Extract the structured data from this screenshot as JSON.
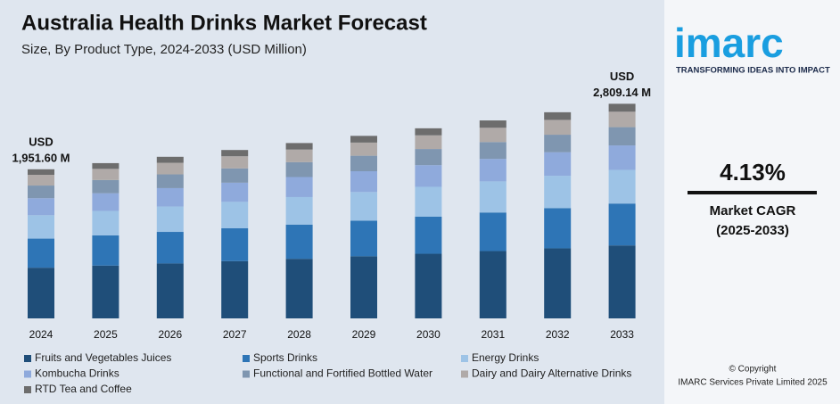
{
  "chart_data": {
    "type": "bar",
    "stacked": true,
    "title": "Australia Health Drinks Market Forecast",
    "subtitle": "Size, By Product Type, 2024-2033 (USD Million)",
    "categories": [
      "2024",
      "2025",
      "2026",
      "2027",
      "2028",
      "2029",
      "2030",
      "2031",
      "2032",
      "2033"
    ],
    "series": [
      {
        "name": "Fruits and Vegetables Juices",
        "color": "#1f4e79",
        "values": [
          663.5,
          691,
          719,
          749,
          780,
          813,
          846,
          881,
          917,
          955
        ]
      },
      {
        "name": "Sports Drinks",
        "color": "#2e75b6",
        "values": [
          380.6,
          396,
          413,
          430,
          448,
          466,
          485,
          505,
          526,
          548
        ]
      },
      {
        "name": "Energy Drinks",
        "color": "#9dc3e6",
        "values": [
          306.4,
          319,
          332,
          346,
          360,
          375,
          391,
          407,
          424,
          441
        ]
      },
      {
        "name": "Kombucha Drinks",
        "color": "#8faadc",
        "values": [
          222.5,
          232,
          241,
          251,
          262,
          272,
          284,
          295,
          308,
          320
        ]
      },
      {
        "name": "Functional and Fortified Bottled Water",
        "color": "#7f96b0",
        "values": [
          165.9,
          173,
          180,
          187,
          195,
          203,
          211,
          220,
          229,
          239
        ]
      },
      {
        "name": "Dairy and Dairy Alternative Drinks",
        "color": "#b0aaa8",
        "values": [
          140.5,
          146,
          152,
          159,
          165,
          172,
          179,
          187,
          194,
          202
        ]
      },
      {
        "name": "RTD Tea and Coffee",
        "color": "#6d6d6d",
        "values": [
          72.2,
          75,
          78,
          82,
          85,
          88,
          92,
          96,
          100,
          104
        ]
      }
    ],
    "ylim": [
      0,
      3000
    ],
    "annotations": [
      {
        "category": 0,
        "lines": [
          "USD",
          "1,951.60 M"
        ]
      },
      {
        "category": 9,
        "lines": [
          "USD",
          "2,809.14 M"
        ]
      }
    ]
  },
  "panel": {
    "logo": "imarc",
    "tagline": "TRANSFORMING IDEAS INTO IMPACT",
    "cagr": "4.13%",
    "cagr_label": "Market CAGR",
    "cagr_period": "(2025-2033)",
    "copyright": [
      "© Copyright",
      "IMARC Services Private Limited 2025"
    ]
  }
}
